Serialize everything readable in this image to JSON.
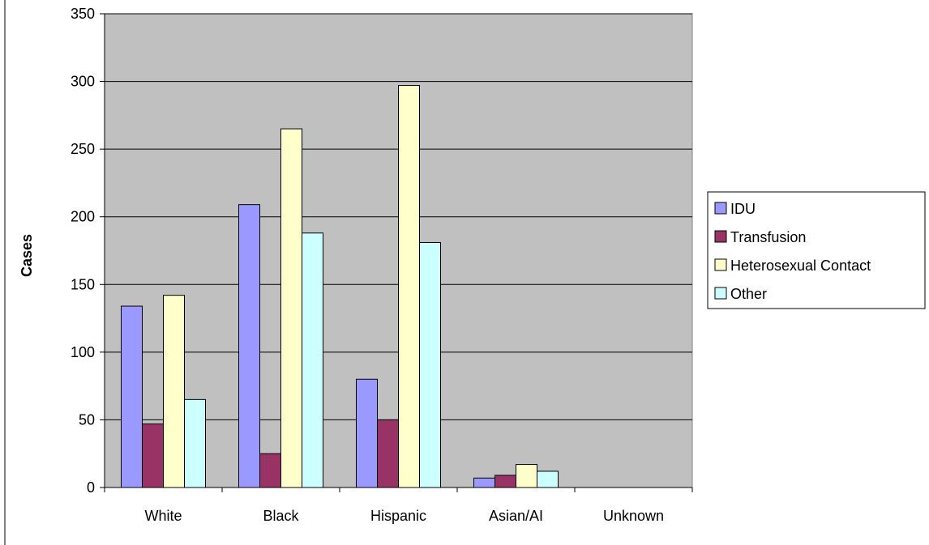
{
  "chart_data": {
    "type": "bar",
    "title": "",
    "xlabel": "",
    "ylabel": "Cases",
    "ylim": [
      0,
      350
    ],
    "yticks": [
      0,
      50,
      100,
      150,
      200,
      250,
      300,
      350
    ],
    "grid": true,
    "legend_position": "right",
    "categories": [
      "White",
      "Black",
      "Hispanic",
      "Asian/AI",
      "Unknown"
    ],
    "series": [
      {
        "name": "IDU",
        "color": "#9999ff",
        "values": [
          134,
          209,
          80,
          7,
          0
        ]
      },
      {
        "name": "Transfusion",
        "color": "#993366",
        "values": [
          47,
          25,
          50,
          9,
          0
        ]
      },
      {
        "name": "Heterosexual Contact",
        "color": "#ffffcc",
        "values": [
          142,
          265,
          297,
          17,
          0
        ]
      },
      {
        "name": "Other",
        "color": "#ccffff",
        "values": [
          65,
          188,
          181,
          12,
          0
        ]
      }
    ],
    "plot_background": "#c0c0c0"
  }
}
